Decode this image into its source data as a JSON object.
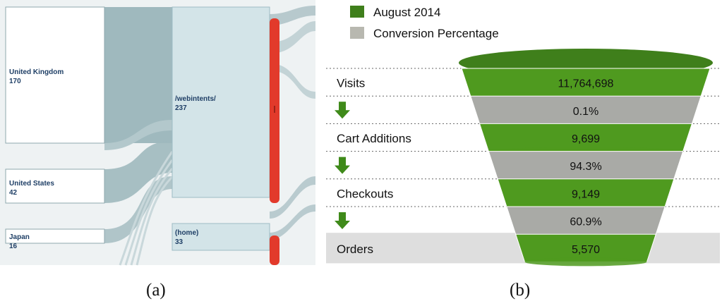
{
  "panels": {
    "a": {
      "caption": "(a)",
      "colors": {
        "source_node": "#ffffff",
        "source_border": "#8fa8ae",
        "flow": "#9fb9be",
        "page_node": "#d3e4e8",
        "page_border": "#9ebcc4",
        "exit_bar": "#e23a2b",
        "background": "#eef2f3"
      }
    },
    "b": {
      "caption": "(b)",
      "colors": {
        "green": "#4f9a1f",
        "grey": "#a9aaa6",
        "legend_green": "#3f7f1b",
        "legend_grey": "#b8b8b0",
        "arrow": "#3f8a1a",
        "orders_band": "#dedede"
      }
    }
  },
  "chart_data": [
    {
      "type": "sankey",
      "panel": "(a)",
      "sources": [
        {
          "label": "United Kingdom",
          "value": 170
        },
        {
          "label": "United States",
          "value": 42
        },
        {
          "label": "Japan",
          "value": 16
        }
      ],
      "pages": [
        {
          "label": "/webintents/",
          "value": 237
        },
        {
          "label": "(home)",
          "value": 33
        }
      ]
    },
    {
      "type": "funnel",
      "panel": "(b)",
      "legend": [
        "August 2014",
        "Conversion Percentage"
      ],
      "stages": [
        {
          "label": "Visits",
          "value": "11,764,698",
          "kind": "count"
        },
        {
          "label": "",
          "value": "0.1%",
          "kind": "conversion"
        },
        {
          "label": "Cart Additions",
          "value": "9,699",
          "kind": "count"
        },
        {
          "label": "",
          "value": "94.3%",
          "kind": "conversion"
        },
        {
          "label": "Checkouts",
          "value": "9,149",
          "kind": "count"
        },
        {
          "label": "",
          "value": "60.9%",
          "kind": "conversion"
        },
        {
          "label": "Orders",
          "value": "5,570",
          "kind": "count"
        }
      ]
    }
  ]
}
